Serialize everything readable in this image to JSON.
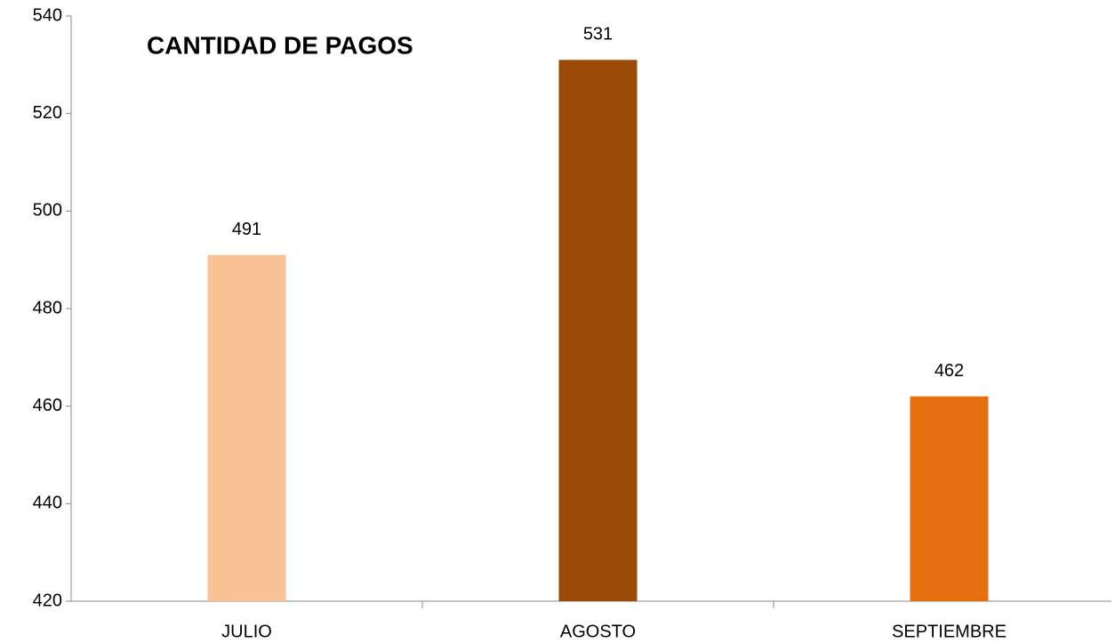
{
  "chart_data": {
    "type": "bar",
    "title": "CANTIDAD DE PAGOS",
    "categories": [
      "JULIO",
      "AGOSTO",
      "SEPTIEMBRE"
    ],
    "values": [
      491,
      531,
      462
    ],
    "colors": [
      "#f9c295",
      "#9a4a06",
      "#e46f0e"
    ],
    "ylim": [
      420,
      540
    ],
    "yticks": [
      420,
      440,
      460,
      480,
      500,
      520,
      540
    ],
    "grid": false
  }
}
